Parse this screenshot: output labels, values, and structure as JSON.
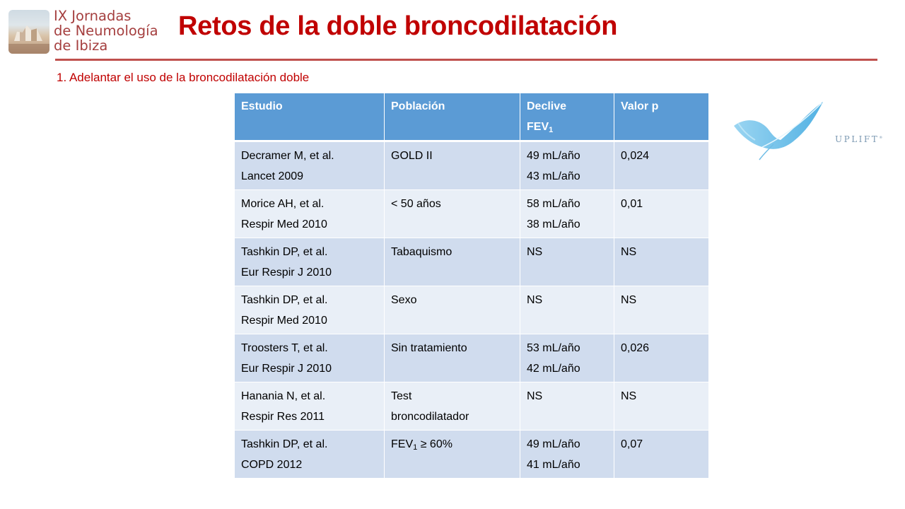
{
  "logo": {
    "lines": [
      "IX Jornadas",
      "de Neumología",
      "de Ibiza"
    ]
  },
  "title": "Retos de la doble broncodilatación",
  "subtitle": "1. Adelantar el uso de la broncodilatación doble",
  "brand": {
    "uplift": "UPLIFT",
    "trademark": "®"
  },
  "table": {
    "headers": {
      "estudio": "Estudio",
      "poblacion": "Población",
      "declive_line1": "Declive",
      "declive_line2": "FEV",
      "declive_sub": "1",
      "valor_p": "Valor p"
    },
    "rows": [
      {
        "study1": "Decramer M, et al.",
        "study2": "Lancet 2009",
        "poblacion": "GOLD II",
        "poblacion2": "",
        "declive1": "49 mL/año",
        "declive2": "43 mL/año",
        "p": "0,024"
      },
      {
        "study1": "Morice AH, et al.",
        "study2": "Respir Med 2010",
        "poblacion": "< 50 años",
        "poblacion2": "",
        "declive1": "58 mL/año",
        "declive2": "38 mL/año",
        "p": "0,01"
      },
      {
        "study1": "Tashkin DP, et al.",
        "study2": "Eur Respir J 2010",
        "poblacion": "Tabaquismo",
        "poblacion2": "",
        "declive1": "NS",
        "declive2": "",
        "p": "NS"
      },
      {
        "study1": "Tashkin DP, et al.",
        "study2": "Respir Med 2010",
        "poblacion": "Sexo",
        "poblacion2": "",
        "declive1": "NS",
        "declive2": "",
        "p": "NS"
      },
      {
        "study1": "Troosters T, et al.",
        "study2": "Eur Respir J 2010",
        "poblacion": "Sin tratamiento",
        "poblacion2": "",
        "declive1": "53 mL/año",
        "declive2": "42 mL/año",
        "p": "0,026"
      },
      {
        "study1": "Hanania N, et al.",
        "study2": "Respir Res 2011",
        "poblacion": "Test",
        "poblacion2": "broncodilatador",
        "declive1": "NS",
        "declive2": "",
        "p": "NS"
      },
      {
        "study1": "Tashkin DP, et al.",
        "study2": "COPD 2012",
        "poblacion_pre": "FEV",
        "poblacion_sub": "1",
        "poblacion_post": " ≥ 60%",
        "declive1": "49 mL/año",
        "declive2": "41 mL/año",
        "p": "0,07"
      }
    ]
  },
  "colors": {
    "title": "#c00000",
    "rule": "#c0504d",
    "header_bg": "#5b9bd5",
    "row_odd": "#d0dcee",
    "row_even": "#e9eff7"
  }
}
